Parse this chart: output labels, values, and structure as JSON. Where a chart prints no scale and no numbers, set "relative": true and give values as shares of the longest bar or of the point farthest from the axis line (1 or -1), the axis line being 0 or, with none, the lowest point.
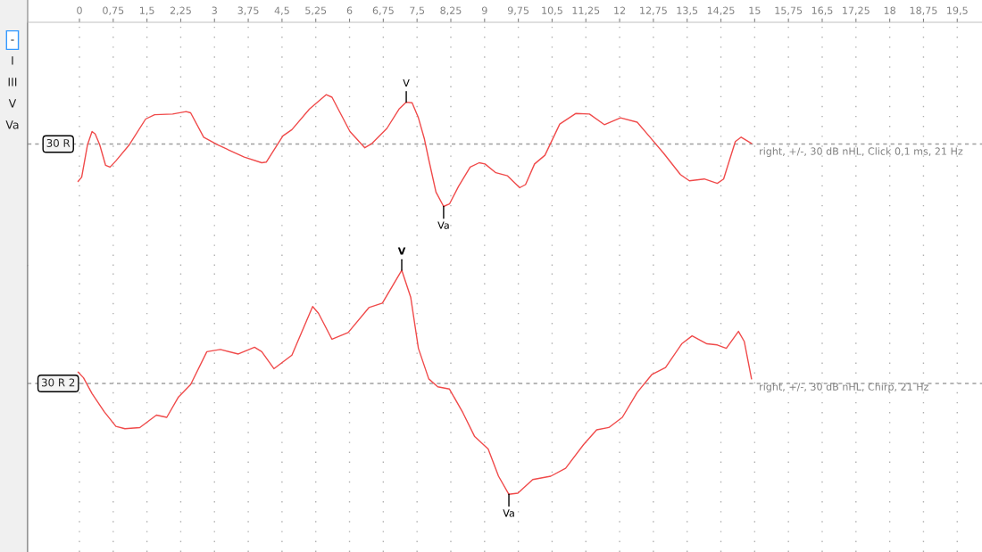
{
  "chart_data": [
    {
      "type": "other",
      "annotations": [
        "-",
        "I",
        "III",
        "V",
        "Va"
      ]
    },
    {
      "type": "line",
      "relative": true,
      "xlim": [
        -1.15,
        20.05
      ],
      "xticks": [
        {
          "value": 0,
          "label": "0"
        },
        {
          "value": 0.75,
          "label": "0,75"
        },
        {
          "value": 1.5,
          "label": "1,5"
        },
        {
          "value": 2.25,
          "label": "2,25"
        },
        {
          "value": 3,
          "label": "3"
        },
        {
          "value": 3.75,
          "label": "3,75"
        },
        {
          "value": 4.5,
          "label": "4,5"
        },
        {
          "value": 5.25,
          "label": "5,25"
        },
        {
          "value": 6,
          "label": "6"
        },
        {
          "value": 6.75,
          "label": "6,75"
        },
        {
          "value": 7.5,
          "label": "7,5"
        },
        {
          "value": 8.25,
          "label": "8,25"
        },
        {
          "value": 9,
          "label": "9"
        },
        {
          "value": 9.75,
          "label": "9,75"
        },
        {
          "value": 10.5,
          "label": "10,5"
        },
        {
          "value": 11.25,
          "label": "11,25"
        },
        {
          "value": 12,
          "label": "12"
        },
        {
          "value": 12.75,
          "label": "12,75"
        },
        {
          "value": 13.5,
          "label": "13,5"
        },
        {
          "value": 14.25,
          "label": "14,25"
        },
        {
          "value": 15,
          "label": "15"
        },
        {
          "value": 15.75,
          "label": "15,75"
        },
        {
          "value": 16.5,
          "label": "16,5"
        },
        {
          "value": 17.25,
          "label": "17,25"
        },
        {
          "value": 18,
          "label": "18"
        },
        {
          "value": 18.75,
          "label": "18,75"
        },
        {
          "value": 19.5,
          "label": "19,5"
        }
      ],
      "tick_labels": "x",
      "grid": "x",
      "legend": false,
      "line_style": "solid",
      "series": [
        {
          "name": "30 R",
          "color": "#f04a4a",
          "x": [
            -0.03,
            0.05,
            0.18,
            0.28,
            0.35,
            0.45,
            0.58,
            0.68,
            0.81,
            1.11,
            1.47,
            1.67,
            2.07,
            2.37,
            2.47,
            2.76,
            3.06,
            3.66,
            4.05,
            4.15,
            4.52,
            4.72,
            5.11,
            5.48,
            5.61,
            6.01,
            6.34,
            6.5,
            6.83,
            7.1,
            7.26,
            7.39,
            7.53,
            7.66,
            7.76,
            7.92,
            8.09,
            8.22,
            8.42,
            8.68,
            8.88,
            9.01,
            9.25,
            9.51,
            9.78,
            9.91,
            10.11,
            10.34,
            10.67,
            11.03,
            11.33,
            11.66,
            12.02,
            12.39,
            12.65,
            12.98,
            13.35,
            13.55,
            13.88,
            14.17,
            14.31,
            14.57,
            14.7,
            14.93
          ],
          "values": [
            -0.6,
            -0.53,
            -0.01,
            0.2,
            0.16,
            -0.01,
            -0.34,
            -0.37,
            -0.27,
            -0.01,
            0.4,
            0.47,
            0.48,
            0.52,
            0.5,
            0.11,
            -0.01,
            -0.21,
            -0.3,
            -0.29,
            0.13,
            0.23,
            0.56,
            0.79,
            0.75,
            0.2,
            -0.06,
            0.01,
            0.25,
            0.56,
            0.67,
            0.66,
            0.42,
            0.09,
            -0.25,
            -0.77,
            -1,
            -0.96,
            -0.68,
            -0.37,
            -0.3,
            -0.32,
            -0.46,
            -0.51,
            -0.7,
            -0.65,
            -0.32,
            -0.18,
            0.32,
            0.49,
            0.48,
            0.31,
            0.42,
            0.35,
            0.13,
            -0.15,
            -0.49,
            -0.59,
            -0.56,
            -0.63,
            -0.56,
            0.04,
            0.11,
            0.01
          ]
        }
      ],
      "ref_lines": [
        {
          "axis": "y",
          "value": 0,
          "color": "#a0a0a0",
          "line_style": "dashed"
        }
      ],
      "annotations": [
        {
          "text": "V",
          "x": 7.26,
          "y": 0.67
        },
        {
          "text": "Va",
          "x": 8.09,
          "y": -1
        },
        {
          "text": "right, +/-, 30 dB nHL, Click 0,1 ms, 21 Hz",
          "x": 14.93,
          "y": 0.01
        }
      ]
    },
    {
      "type": "line",
      "relative": true,
      "xlim": [
        -1.15,
        20.05
      ],
      "xticks": [
        0,
        0.75,
        1.5,
        2.25,
        3,
        3.75,
        4.5,
        5.25,
        6,
        6.75,
        7.5,
        8.25,
        9,
        9.75,
        10.5,
        11.25,
        12,
        12.75,
        13.5,
        14.25,
        15,
        15.75,
        16.5,
        17.25,
        18,
        18.75,
        19.5
      ],
      "tick_labels": false,
      "grid": "x",
      "legend": false,
      "line_style": "solid",
      "series": [
        {
          "name": "30 R 2",
          "color": "#f04a4a",
          "x": [
            -0.03,
            0.09,
            0.28,
            0.55,
            0.81,
            1.01,
            1.34,
            1.71,
            1.94,
            2.2,
            2.47,
            2.83,
            3.13,
            3.53,
            3.89,
            4.05,
            4.32,
            4.72,
            5.18,
            5.31,
            5.61,
            5.97,
            6.43,
            6.73,
            7.13,
            7.16,
            7.36,
            7.53,
            7.76,
            7.96,
            8.22,
            8.52,
            8.78,
            9.08,
            9.31,
            9.54,
            9.74,
            10.07,
            10.47,
            10.8,
            11.2,
            11.49,
            11.76,
            12.06,
            12.39,
            12.72,
            13.02,
            13.38,
            13.61,
            13.94,
            14.17,
            14.37,
            14.64,
            14.77,
            14.93
          ],
          "values": [
            0.1,
            0.05,
            -0.09,
            -0.25,
            -0.38,
            -0.4,
            -0.39,
            -0.28,
            -0.3,
            -0.12,
            -0.01,
            0.28,
            0.3,
            0.26,
            0.32,
            0.28,
            0.13,
            0.25,
            0.68,
            0.62,
            0.39,
            0.45,
            0.67,
            0.71,
            0.98,
            1,
            0.76,
            0.31,
            0.04,
            -0.03,
            -0.05,
            -0.26,
            -0.47,
            -0.58,
            -0.82,
            -0.98,
            -0.97,
            -0.85,
            -0.82,
            -0.75,
            -0.54,
            -0.41,
            -0.39,
            -0.3,
            -0.08,
            0.08,
            0.14,
            0.35,
            0.42,
            0.35,
            0.34,
            0.31,
            0.46,
            0.37,
            0.04
          ]
        }
      ],
      "ref_lines": [
        {
          "axis": "y",
          "value": 0,
          "color": "#a0a0a0",
          "line_style": "dashed"
        }
      ],
      "annotations": [
        {
          "text": "V",
          "x": 7.16,
          "y": 1
        },
        {
          "text": "Va",
          "x": 9.54,
          "y": -0.98
        },
        {
          "text": "right, +/-, 30 dB nHL, Chirp, 21 Hz",
          "x": 14.93,
          "y": 0.04
        }
      ]
    }
  ]
}
